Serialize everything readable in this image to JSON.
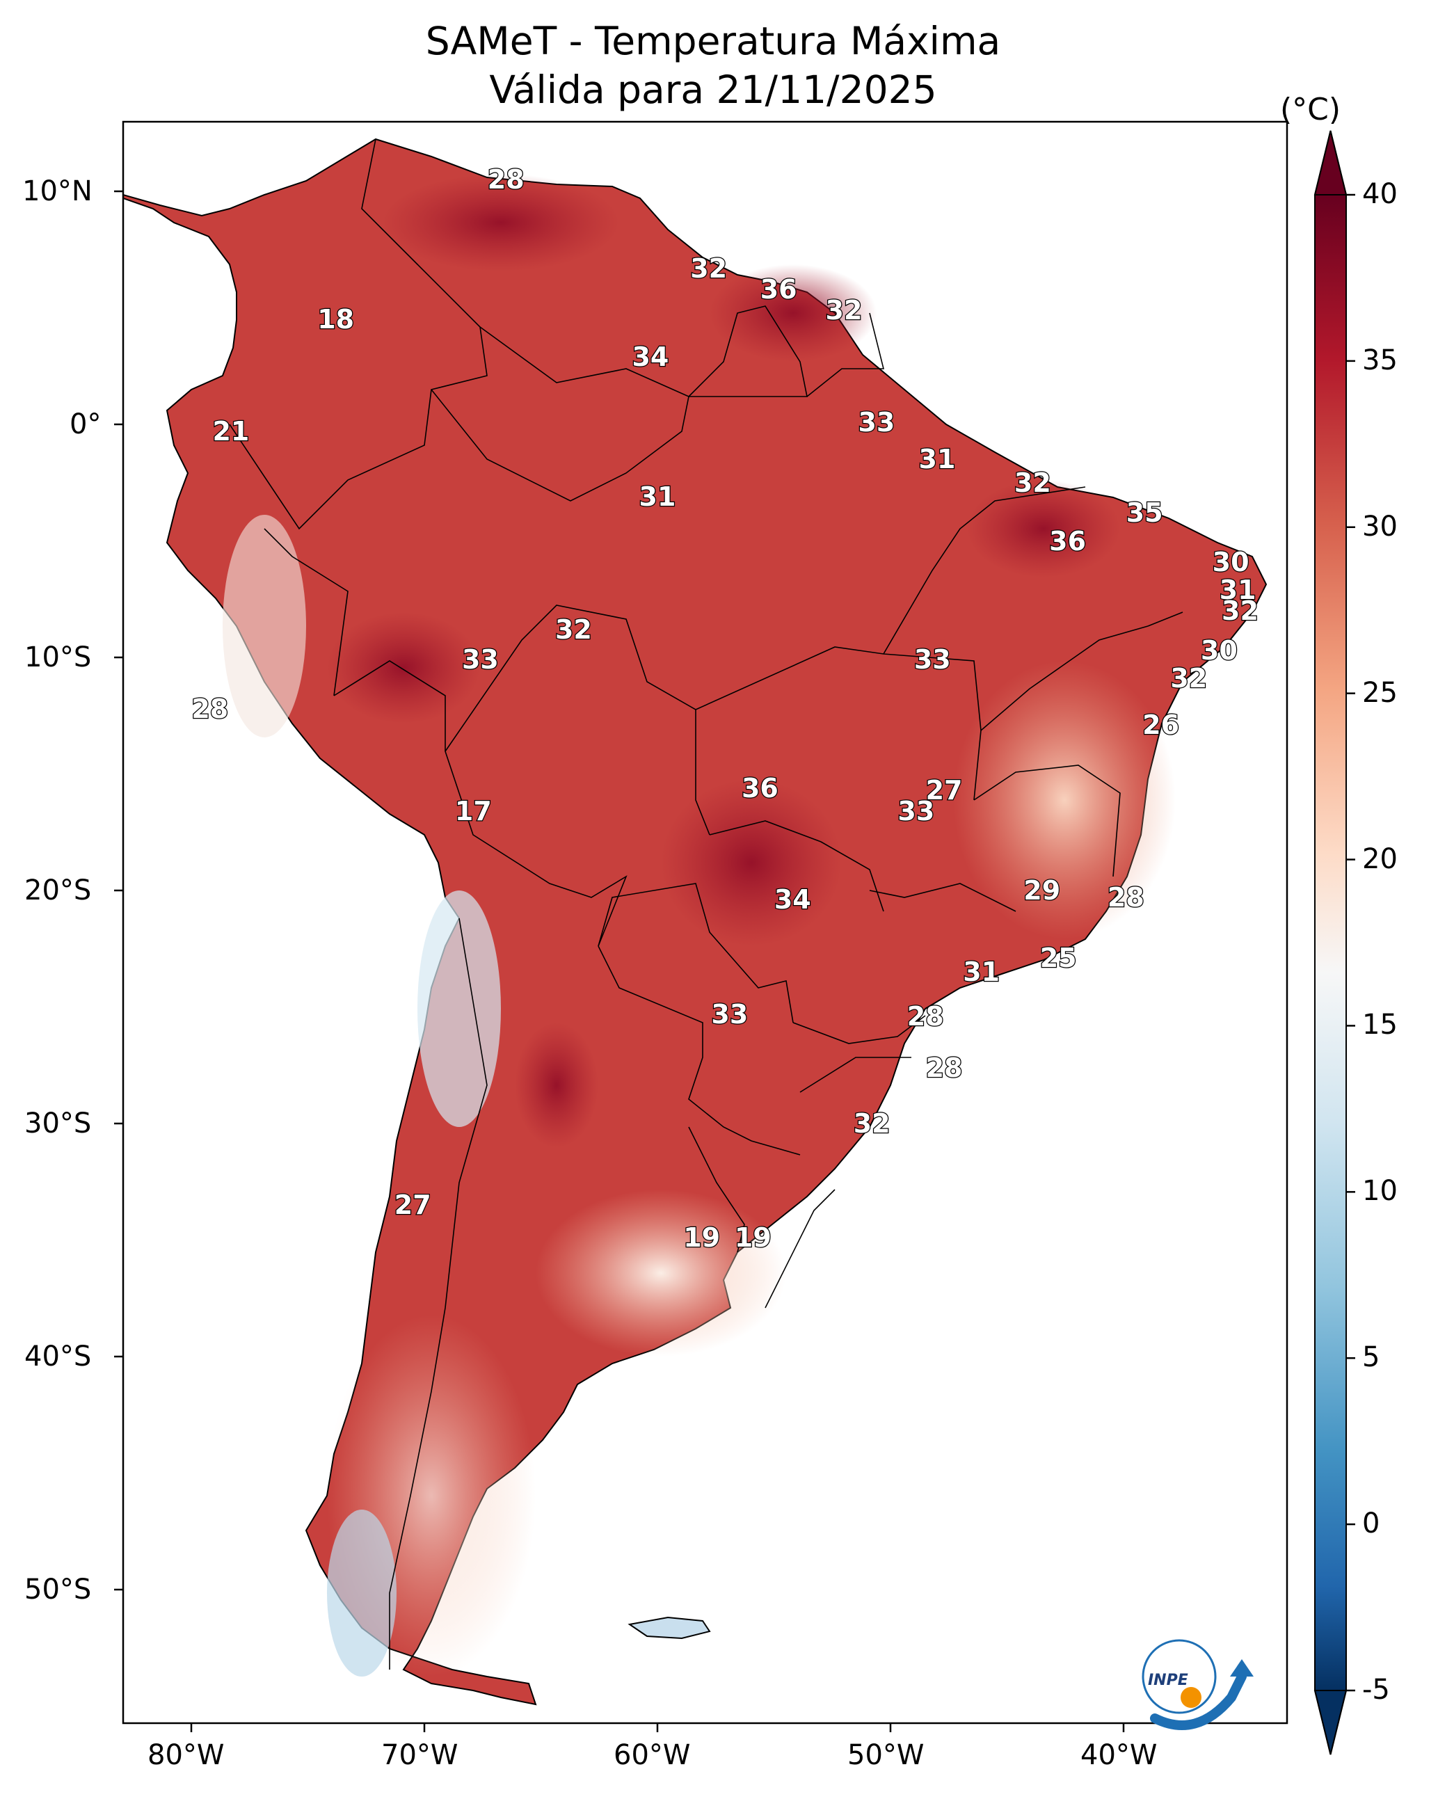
{
  "title": {
    "line1": "SAMeT - Temperatura Máxima",
    "line2": "Válida para 21/11/2025"
  },
  "colorbar": {
    "unit": "(°C)",
    "min": -5,
    "max": 40,
    "ticks": [
      "40",
      "35",
      "30",
      "25",
      "20",
      "15",
      "10",
      "5",
      "0",
      "-5"
    ]
  },
  "axes": {
    "longitude_ticks": [
      "80°W",
      "70°W",
      "60°W",
      "50°W",
      "40°W"
    ],
    "latitude_ticks": [
      "10°N",
      "0°",
      "10°S",
      "20°S",
      "30°S",
      "40°S",
      "50°S"
    ]
  },
  "logo": {
    "text": "INPE"
  },
  "colors": {
    "hot": "#67001f",
    "warm": "#b2182b",
    "mild": "#f4a582",
    "neutral": "#f7f7f7",
    "cool": "#92c5de",
    "cold": "#053061",
    "logo_blue": "#1e6fb4",
    "logo_orange": "#f39200"
  },
  "temperature_labels": [
    {
      "value": "28",
      "lon": -66.5,
      "lat": 10.5
    },
    {
      "value": "32",
      "lon": -57.8,
      "lat": 6.7
    },
    {
      "value": "36",
      "lon": -54.8,
      "lat": 5.8
    },
    {
      "value": "32",
      "lon": -52.0,
      "lat": 4.9
    },
    {
      "value": "18",
      "lon": -73.8,
      "lat": 4.5
    },
    {
      "value": "34",
      "lon": -60.3,
      "lat": 2.9
    },
    {
      "value": "33",
      "lon": -50.6,
      "lat": 0.1
    },
    {
      "value": "21",
      "lon": -78.3,
      "lat": -0.3
    },
    {
      "value": "31",
      "lon": -48.0,
      "lat": -1.5
    },
    {
      "value": "32",
      "lon": -43.9,
      "lat": -2.5
    },
    {
      "value": "31",
      "lon": -60.0,
      "lat": -3.1
    },
    {
      "value": "35",
      "lon": -39.1,
      "lat": -3.8
    },
    {
      "value": "36",
      "lon": -42.4,
      "lat": -5.0
    },
    {
      "value": "30",
      "lon": -35.4,
      "lat": -5.9
    },
    {
      "value": "31",
      "lon": -35.1,
      "lat": -7.1
    },
    {
      "value": "32",
      "lon": -35.0,
      "lat": -8.0
    },
    {
      "value": "32",
      "lon": -63.6,
      "lat": -8.8
    },
    {
      "value": "30",
      "lon": -35.9,
      "lat": -9.7
    },
    {
      "value": "33",
      "lon": -67.6,
      "lat": -10.1
    },
    {
      "value": "33",
      "lon": -48.2,
      "lat": -10.1
    },
    {
      "value": "32",
      "lon": -37.2,
      "lat": -10.9
    },
    {
      "value": "28",
      "lon": -79.2,
      "lat": -12.2
    },
    {
      "value": "26",
      "lon": -38.4,
      "lat": -12.9
    },
    {
      "value": "36",
      "lon": -55.6,
      "lat": -15.6
    },
    {
      "value": "27",
      "lon": -47.7,
      "lat": -15.7
    },
    {
      "value": "17",
      "lon": -67.9,
      "lat": -16.6
    },
    {
      "value": "33",
      "lon": -48.9,
      "lat": -16.6
    },
    {
      "value": "29",
      "lon": -43.5,
      "lat": -20.0
    },
    {
      "value": "34",
      "lon": -54.2,
      "lat": -20.4
    },
    {
      "value": "28",
      "lon": -39.9,
      "lat": -20.3
    },
    {
      "value": "25",
      "lon": -42.8,
      "lat": -22.9
    },
    {
      "value": "31",
      "lon": -46.1,
      "lat": -23.5
    },
    {
      "value": "33",
      "lon": -56.9,
      "lat": -25.3
    },
    {
      "value": "28",
      "lon": -48.5,
      "lat": -25.4
    },
    {
      "value": "28",
      "lon": -47.7,
      "lat": -27.6
    },
    {
      "value": "32",
      "lon": -50.8,
      "lat": -30.0
    },
    {
      "value": "27",
      "lon": -70.5,
      "lat": -33.5
    },
    {
      "value": "19",
      "lon": -58.1,
      "lat": -34.9
    },
    {
      "value": "19",
      "lon": -55.9,
      "lat": -34.9
    }
  ]
}
